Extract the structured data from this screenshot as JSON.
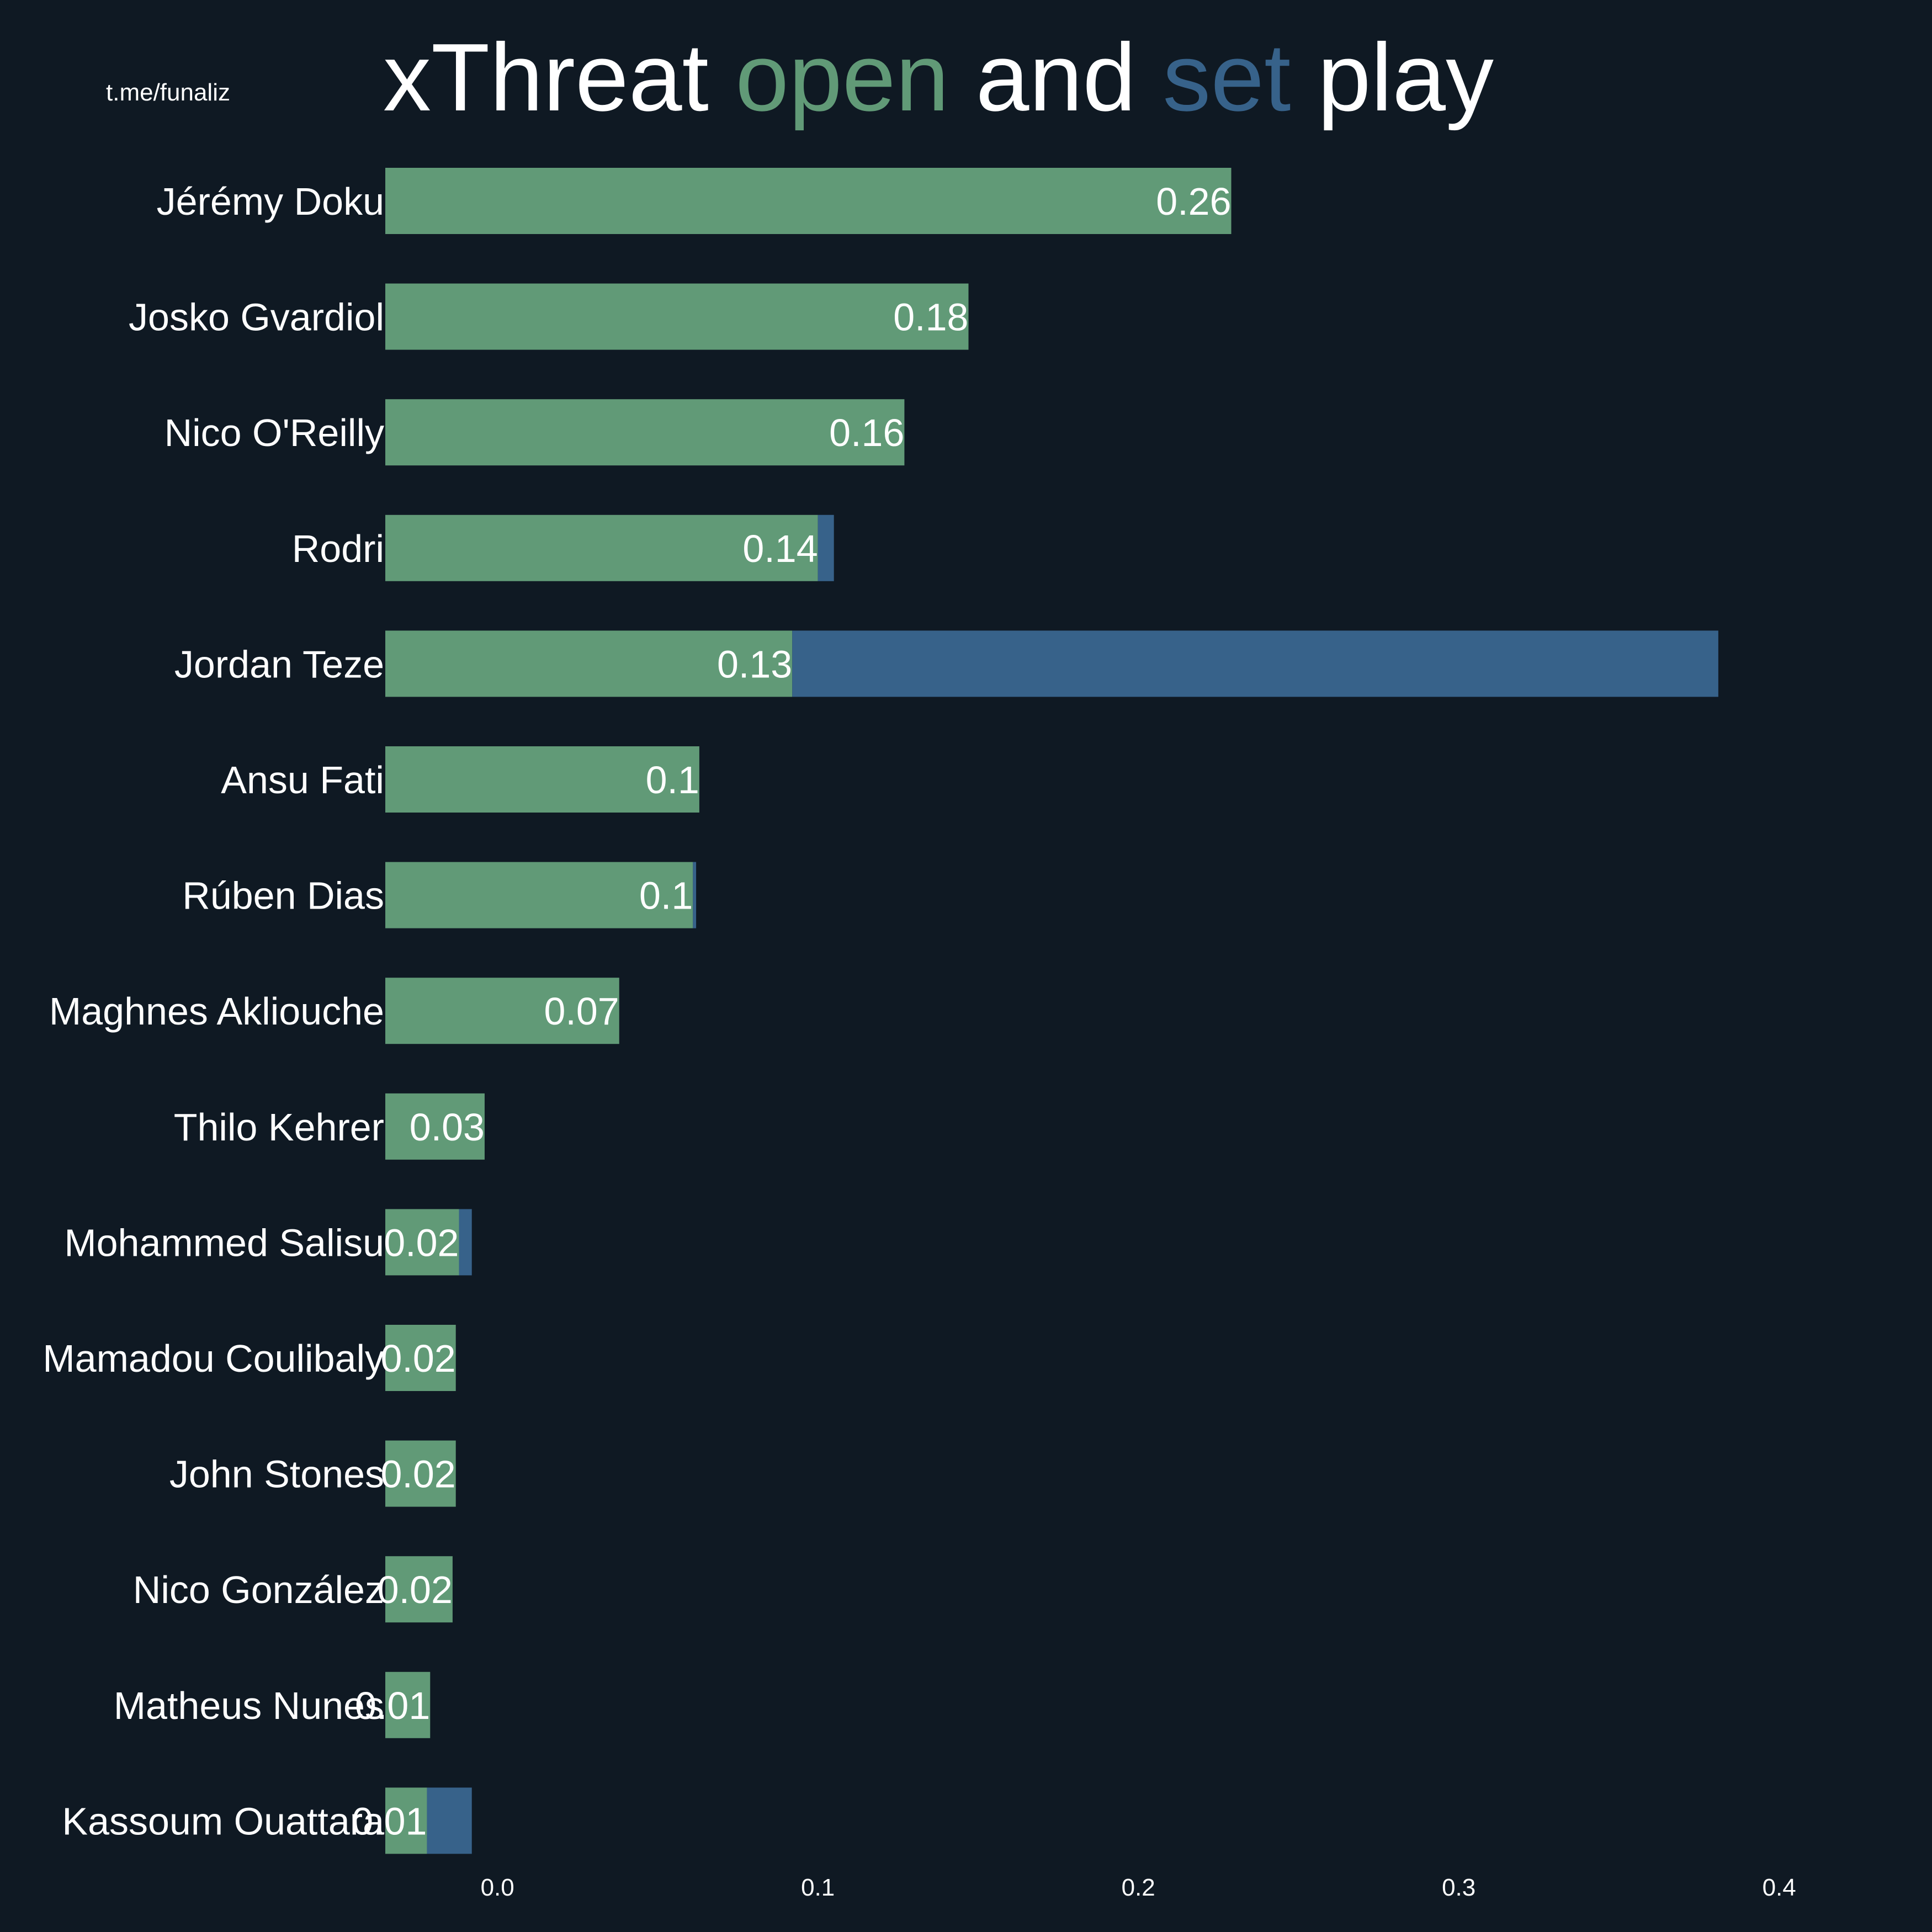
{
  "watermark": "t.me/funaliz",
  "title": {
    "part1": "xThreat ",
    "part2": "open",
    "part3": " and ",
    "part4": "set",
    "part5": " play"
  },
  "colors": {
    "background": "#0f1923",
    "open_play": "#619a77",
    "set_play": "#37628a",
    "text": "#ffffff"
  },
  "chart_data": {
    "type": "bar",
    "orientation": "horizontal",
    "stacked": true,
    "categories": [
      "Jérémy Doku",
      "Josko Gvardiol",
      "Nico O'Reilly",
      "Rodri",
      "Jordan Teze",
      "Ansu Fati",
      "Rúben Dias",
      "Maghnes Akliouche",
      "Thilo Kehrer",
      "Mohammed Salisu",
      "Mamadou Coulibaly",
      "John Stones",
      "Nico González",
      "Matheus Nunes",
      "Kassoum Ouattara"
    ],
    "series": [
      {
        "name": "open",
        "color": "#619a77",
        "values": [
          0.264,
          0.182,
          0.162,
          0.135,
          0.127,
          0.098,
          0.096,
          0.073,
          0.031,
          0.023,
          0.022,
          0.022,
          0.021,
          0.014,
          0.013
        ]
      },
      {
        "name": "set",
        "color": "#37628a",
        "values": [
          0.0,
          0.0,
          0.0,
          0.005,
          0.289,
          0.0,
          0.001,
          0.0,
          0.0,
          0.004,
          0.0,
          0.0,
          0.0,
          0.0,
          0.014
        ]
      }
    ],
    "data_labels": [
      "0.26",
      "0.18",
      "0.16",
      "0.14",
      "0.13",
      "0.1",
      "0.1",
      "0.07",
      "0.03",
      "0.02",
      "0.02",
      "0.02",
      "0.02",
      "0.01",
      "0.01"
    ],
    "x_ticks": [
      0.0,
      0.1,
      0.2,
      0.3,
      0.4
    ],
    "x_tick_labels": [
      "0.0",
      "0.1",
      "0.2",
      "0.3",
      "0.4"
    ],
    "xlim": [
      -0.035,
      0.43
    ],
    "xlabel": "",
    "ylabel": "",
    "grid": false,
    "legend": "none"
  }
}
